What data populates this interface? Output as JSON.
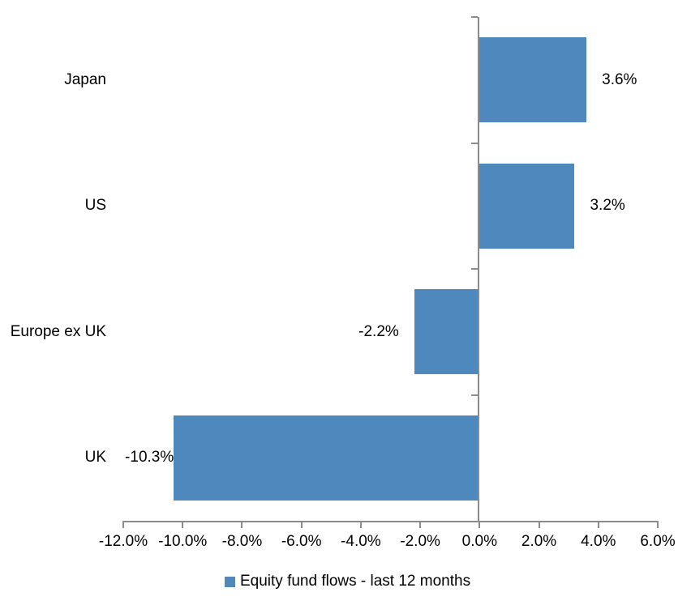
{
  "chart_data": {
    "type": "bar",
    "orientation": "horizontal",
    "title": "",
    "categories": [
      "Japan",
      "US",
      "Europe ex UK",
      "UK"
    ],
    "series": [
      {
        "name": "Equity fund flows - last 12 months",
        "values": [
          3.6,
          3.2,
          -2.2,
          -10.3
        ],
        "labels": [
          "3.6%",
          "3.2%",
          "-2.2%",
          "-10.3%"
        ],
        "color": "#4E88BD"
      }
    ],
    "xlim": [
      -12,
      6
    ],
    "x_tick_values": [
      -12,
      -10,
      -8,
      -6,
      -4,
      -2,
      0,
      2,
      4,
      6
    ],
    "x_tick_labels": [
      "-12.0%",
      "-10.0%",
      "-8.0%",
      "-6.0%",
      "-4.0%",
      "-2.0%",
      "0.0%",
      "2.0%",
      "4.0%",
      "6.0%"
    ],
    "grid": false,
    "axis_color": "#8C8C8C",
    "legend": {
      "label": "Equity fund flows - last 12 months",
      "position": "bottom",
      "marker_color": "#4E88BD"
    }
  }
}
